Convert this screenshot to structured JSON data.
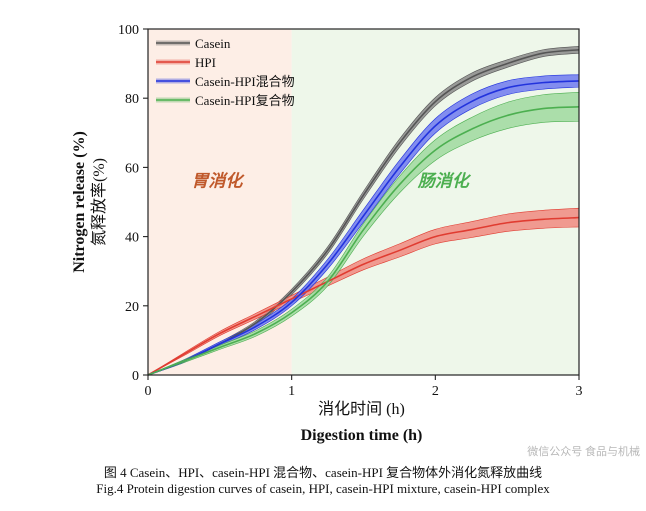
{
  "chart_data": {
    "type": "line",
    "xlabel_cn": "消化时间 (h)",
    "xlabel_en": "Digestion time (h)",
    "ylabel_en": "Nitrogen release (%)",
    "ylabel_cn": "氮释放率(%)",
    "xlim": [
      0,
      3
    ],
    "ylim": [
      0,
      100
    ],
    "xticks": [
      "0",
      "1",
      "2",
      "3"
    ],
    "yticks": [
      "0",
      "20",
      "40",
      "60",
      "80",
      "100"
    ],
    "grid": false,
    "legend_position": "top-left",
    "regions": [
      {
        "label": "胃消化",
        "from": 0,
        "to": 1,
        "color": "#fdeee6",
        "text_color": "#c0592b"
      },
      {
        "label": "肠消化",
        "from": 1,
        "to": 3,
        "color": "#eef7ea",
        "text_color": "#4caf50"
      }
    ],
    "x": [
      0,
      0.25,
      0.5,
      0.75,
      1.0,
      1.25,
      1.5,
      1.75,
      2.0,
      2.25,
      2.5,
      2.75,
      3.0
    ],
    "series": [
      {
        "name": "Casein",
        "color": "#555555",
        "band": "#8a8a8a",
        "values": [
          0,
          4,
          9,
          15,
          24,
          36,
          52,
          67,
          79,
          86,
          90,
          93,
          94
        ],
        "error": [
          0,
          0.3,
          0.5,
          0.6,
          0.8,
          1.0,
          1.1,
          1.2,
          1.2,
          1.2,
          1.1,
          1.0,
          1.0
        ]
      },
      {
        "name": "HPI",
        "color": "#e03c31",
        "band": "#f08a80",
        "values": [
          0,
          6,
          12,
          17,
          22,
          27,
          32,
          36,
          40,
          42,
          44,
          45,
          45.5
        ],
        "error": [
          0,
          0.4,
          0.6,
          0.8,
          1.0,
          1.3,
          1.6,
          1.9,
          2.1,
          2.3,
          2.5,
          2.6,
          2.7
        ]
      },
      {
        "name": "Casein-HPI混合物",
        "color": "#2233dd",
        "band": "#6f7af0",
        "values": [
          0,
          4,
          9,
          14,
          21,
          32,
          46,
          60,
          72,
          79,
          83,
          84.5,
          85
        ],
        "error": [
          0,
          0.4,
          0.6,
          0.8,
          1.0,
          1.4,
          1.8,
          2.0,
          2.1,
          2.1,
          2.0,
          1.9,
          1.8
        ]
      },
      {
        "name": "Casein-HPI复合物",
        "color": "#4caf50",
        "band": "#9fd99f",
        "values": [
          0,
          4,
          8,
          12,
          18,
          27,
          42,
          55,
          65,
          71,
          75,
          77,
          77.5
        ],
        "error": [
          0,
          0.4,
          0.6,
          0.8,
          1.0,
          1.3,
          1.8,
          2.4,
          3.0,
          3.4,
          3.8,
          4.0,
          4.2
        ]
      }
    ]
  },
  "caption_cn": "图 4 Casein、HPI、casein-HPI 混合物、casein-HPI 复合物体外消化氮释放曲线",
  "caption_en": "Fig.4 Protein digestion curves of casein, HPI, casein-HPI mixture, casein-HPI complex",
  "watermark_text": "微信公众号 食品与机械"
}
